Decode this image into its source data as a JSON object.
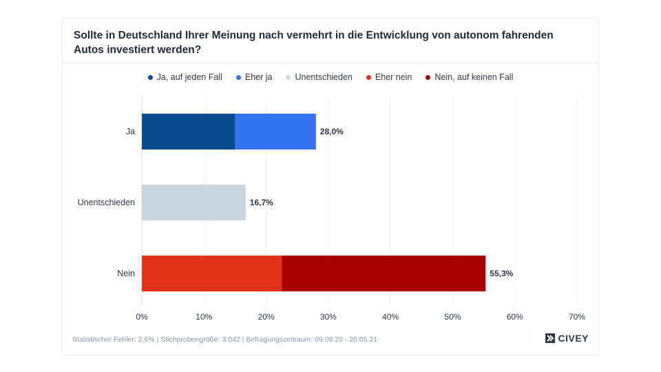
{
  "chart_data": {
    "type": "bar",
    "orientation": "horizontal",
    "stacked": true,
    "title": "Sollte in Deutschland Ihrer Meinung nach vermehrt in die Entwicklung von autonom fahrenden Autos investiert werden?",
    "categories": [
      "Ja",
      "Unentschieden",
      "Nein"
    ],
    "series": [
      {
        "name": "Ja, auf jeden Fall",
        "color": "#0b4a8f",
        "values": [
          15.0,
          0,
          0
        ]
      },
      {
        "name": "Eher ja",
        "color": "#3572ef",
        "values": [
          13.0,
          0,
          0
        ]
      },
      {
        "name": "Unentschieden",
        "color": "#c8d4de",
        "values": [
          0,
          16.7,
          0
        ]
      },
      {
        "name": "Eher nein",
        "color": "#e0311a",
        "values": [
          0,
          0,
          22.5
        ]
      },
      {
        "name": "Nein, auf keinen Fall",
        "color": "#a90000",
        "values": [
          0,
          0,
          32.8
        ]
      }
    ],
    "totals": [
      "28,0%",
      "16,7%",
      "55,3%"
    ],
    "xlim": [
      0,
      70
    ],
    "xticks": [
      0,
      10,
      20,
      30,
      40,
      50,
      60,
      70
    ],
    "xtick_labels": [
      "0%",
      "10%",
      "20%",
      "30%",
      "40%",
      "50%",
      "60%",
      "70%"
    ],
    "grid": true,
    "legend_position": "top-center"
  },
  "footer": {
    "note": "Statistischer Fehler: 2,6% | Stichprobengröße: 3.042 | Befragungszeitraum: 09.09.20 - 20.05.21",
    "brand": "CIVEY"
  }
}
